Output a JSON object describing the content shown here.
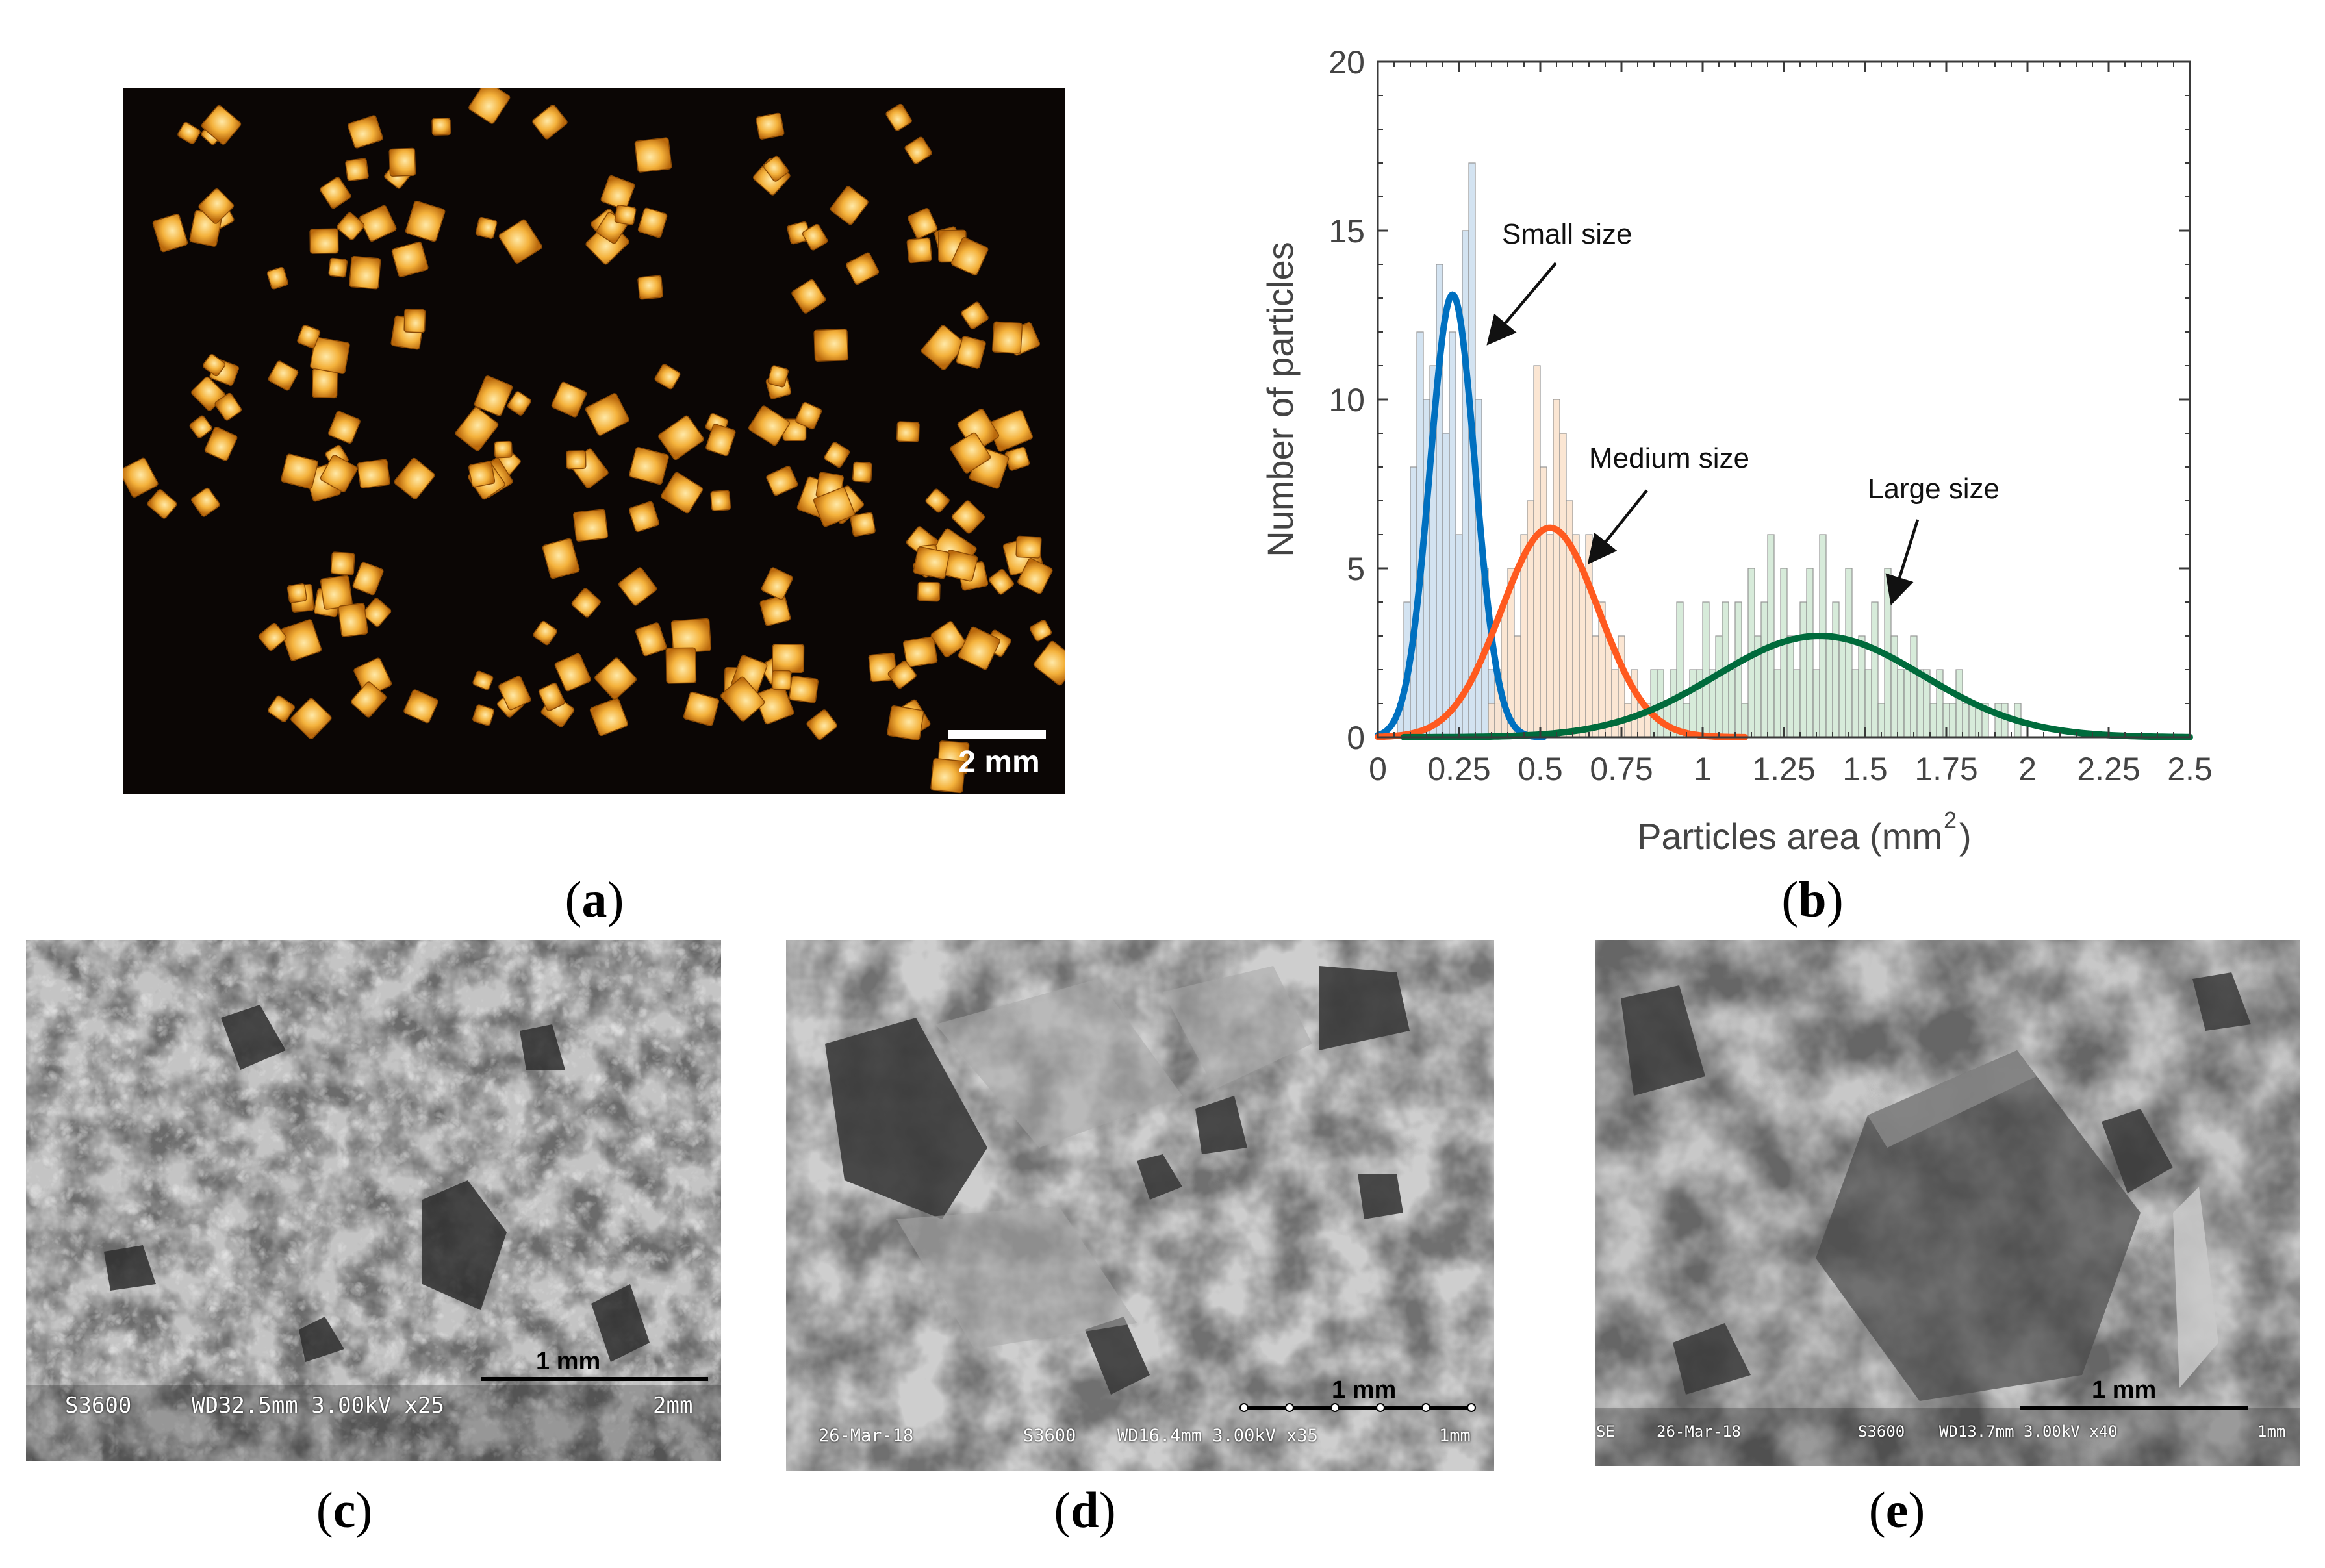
{
  "panels": {
    "a": {
      "caption_letter": "a",
      "scale_bar": "2 mm"
    },
    "b": {
      "caption_letter": "b"
    },
    "c": {
      "caption_letter": "c",
      "scale_bar": "1 mm",
      "info": [
        "S3600",
        "WD32.5mm 3.00kV x25",
        "2mm"
      ]
    },
    "d": {
      "caption_letter": "d",
      "scale_bar": "1 mm",
      "info": [
        "26-Mar-18",
        "S3600",
        "WD16.4mm 3.00kV x35",
        "1mm"
      ]
    },
    "e": {
      "caption_letter": "e",
      "scale_bar": "1 mm",
      "info": [
        "SE",
        "26-Mar-18",
        "S3600",
        "WD13.7mm 3.00kV x40",
        "1mm"
      ]
    }
  },
  "chart_data": {
    "type": "bar",
    "xlabel": "Particles area (mm",
    "xlabel_sup": "2",
    "xlabel_close": ")",
    "ylabel": "Number of particles",
    "xlim": [
      0,
      2.5
    ],
    "ylim": [
      0,
      20
    ],
    "x_ticks": [
      "0",
      "0.25",
      "0.5",
      "0.75",
      "1",
      "1.25",
      "1.5",
      "1.75",
      "2",
      "2.25",
      "2.5"
    ],
    "y_ticks": [
      "0",
      "5",
      "10",
      "15",
      "20"
    ],
    "bin_width": 0.02,
    "annotations": [
      "Small size",
      "Medium size",
      "Large size"
    ],
    "series": [
      {
        "color": "#0070c0",
        "fill": "#cfe0f0",
        "bins_start": 0.06,
        "counts": [
          1,
          4,
          8,
          12,
          10,
          11,
          14,
          9,
          12,
          6,
          15,
          17,
          10,
          5,
          2,
          1,
          1
        ],
        "fit": {
          "mean": 0.23,
          "sd": 0.07,
          "peak": 13.1
        }
      },
      {
        "color": "#ff5a1f",
        "fill": "#fbe4cf",
        "bins_start": 0.34,
        "counts": [
          1,
          2,
          4,
          5,
          3,
          6,
          7,
          11,
          8,
          6,
          10,
          9,
          7,
          6,
          5,
          6,
          3,
          4,
          3,
          2,
          3,
          1,
          2,
          1,
          1
        ],
        "fit": {
          "mean": 0.53,
          "sd": 0.15,
          "peak": 6.2
        }
      },
      {
        "color": "#006b3c",
        "fill": "#d3e9d6",
        "bins_start": 0.84,
        "counts": [
          2,
          2,
          1,
          2,
          4,
          1,
          2,
          2,
          4,
          2,
          3,
          4,
          2,
          4,
          1,
          5,
          3,
          4,
          6,
          2,
          5,
          3,
          2,
          4,
          5,
          2,
          6,
          3,
          4,
          3,
          5,
          2,
          3,
          2,
          4,
          1,
          5,
          3,
          2,
          2,
          3,
          2,
          2,
          1,
          2,
          1,
          1,
          2,
          1,
          1,
          1,
          1,
          0,
          1,
          1,
          0,
          1
        ],
        "fit": {
          "mean": 1.36,
          "sd": 0.32,
          "peak": 3.0
        }
      }
    ]
  }
}
